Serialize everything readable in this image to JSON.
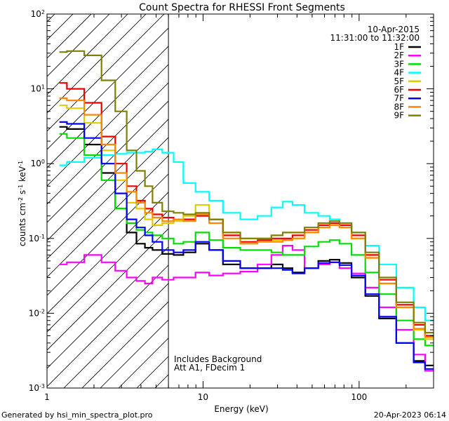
{
  "chart_data": {
    "type": "line",
    "title": "Count Spectra for RHESSI Front Segments",
    "xlabel": "Energy (keV)",
    "ylabel_parts": {
      "a": "counts cm",
      "b": "-2",
      "c": " s",
      "d": "-1",
      "e": " keV",
      "f": "-1"
    },
    "xscale": "log",
    "yscale": "log",
    "xlim": [
      1,
      300
    ],
    "ylim": [
      0.001,
      100
    ],
    "x_tick_labels": [
      "1",
      "10",
      "100"
    ],
    "y_tick_labels": [
      {
        "base": "10",
        "exp": "-3"
      },
      {
        "base": "10",
        "exp": "-2"
      },
      {
        "base": "10",
        "exp": "-1"
      },
      {
        "base": "10",
        "exp": "0"
      },
      {
        "base": "10",
        "exp": "1"
      },
      {
        "base": "10",
        "exp": "2"
      }
    ],
    "date": "10-Apr-2015",
    "time_range": "11:31:00 to 11:32:00",
    "note_line1": "Includes Background",
    "note_line2": "Att A1, FDecim 1",
    "hatched_region_keV": [
      1,
      6
    ],
    "x": [
      1.2,
      1.5,
      2,
      2.5,
      3,
      3.5,
      4,
      4.5,
      5,
      6,
      7,
      8,
      10,
      12,
      15,
      20,
      25,
      30,
      35,
      40,
      50,
      60,
      70,
      80,
      100,
      120,
      150,
      200,
      250,
      280
    ],
    "series": [
      {
        "name": "1F",
        "color": "#000000",
        "values": [
          3.1,
          2.9,
          1.8,
          0.75,
          0.25,
          0.12,
          0.085,
          0.075,
          0.07,
          0.062,
          0.06,
          0.065,
          0.085,
          0.07,
          0.045,
          0.04,
          0.04,
          0.045,
          0.04,
          0.035,
          0.04,
          0.05,
          0.052,
          0.047,
          0.03,
          0.017,
          0.0085,
          0.004,
          0.0023,
          0.002
        ]
      },
      {
        "name": "2F",
        "color": "#ff00ff",
        "values": [
          0.045,
          0.048,
          0.06,
          0.048,
          0.037,
          0.03,
          0.027,
          0.025,
          0.03,
          0.028,
          0.03,
          0.03,
          0.035,
          0.032,
          0.034,
          0.036,
          0.045,
          0.06,
          0.08,
          0.07,
          0.04,
          0.045,
          0.048,
          0.04,
          0.034,
          0.022,
          0.012,
          0.006,
          0.0028,
          0.0017
        ]
      },
      {
        "name": "3F",
        "color": "#00dd00",
        "values": [
          2.5,
          2.2,
          1.3,
          0.6,
          0.25,
          0.16,
          0.13,
          0.12,
          0.11,
          0.1,
          0.085,
          0.09,
          0.12,
          0.095,
          0.075,
          0.07,
          0.07,
          0.065,
          0.06,
          0.06,
          0.078,
          0.09,
          0.095,
          0.085,
          0.06,
          0.035,
          0.018,
          0.008,
          0.0045,
          0.0037
        ]
      },
      {
        "name": "4F",
        "color": "#00ffff",
        "values": [
          0.95,
          1.05,
          1.2,
          1.3,
          1.35,
          1.4,
          1.4,
          1.45,
          1.55,
          1.4,
          1.05,
          0.55,
          0.42,
          0.32,
          0.22,
          0.18,
          0.2,
          0.26,
          0.31,
          0.28,
          0.22,
          0.2,
          0.18,
          0.16,
          0.12,
          0.08,
          0.045,
          0.022,
          0.012,
          0.008
        ]
      },
      {
        "name": "5F",
        "color": "#ddcc00",
        "values": [
          6.0,
          5.5,
          3.5,
          1.5,
          0.6,
          0.3,
          0.25,
          0.18,
          0.15,
          0.16,
          0.17,
          0.2,
          0.28,
          0.18,
          0.12,
          0.1,
          0.1,
          0.095,
          0.095,
          0.1,
          0.12,
          0.14,
          0.15,
          0.14,
          0.1,
          0.055,
          0.025,
          0.012,
          0.006,
          0.0045
        ]
      },
      {
        "name": "6F",
        "color": "#ee0000",
        "values": [
          12,
          10,
          6.5,
          2.3,
          1.0,
          0.5,
          0.32,
          0.25,
          0.21,
          0.19,
          0.18,
          0.18,
          0.2,
          0.18,
          0.11,
          0.09,
          0.095,
          0.1,
          0.1,
          0.11,
          0.13,
          0.15,
          0.16,
          0.15,
          0.11,
          0.06,
          0.028,
          0.013,
          0.007,
          0.005
        ]
      },
      {
        "name": "7F",
        "color": "#0000ff",
        "values": [
          3.6,
          3.4,
          2.2,
          1.0,
          0.4,
          0.18,
          0.14,
          0.11,
          0.09,
          0.07,
          0.065,
          0.07,
          0.09,
          0.07,
          0.05,
          0.04,
          0.04,
          0.04,
          0.038,
          0.034,
          0.04,
          0.047,
          0.048,
          0.044,
          0.032,
          0.018,
          0.009,
          0.004,
          0.0022,
          0.0018
        ]
      },
      {
        "name": "8F",
        "color": "#ff8800",
        "values": [
          7.5,
          7.0,
          4.5,
          1.8,
          0.75,
          0.42,
          0.3,
          0.22,
          0.19,
          0.17,
          0.18,
          0.17,
          0.21,
          0.16,
          0.1,
          0.085,
          0.09,
          0.09,
          0.095,
          0.1,
          0.12,
          0.14,
          0.15,
          0.14,
          0.1,
          0.055,
          0.025,
          0.012,
          0.0062,
          0.0048
        ]
      },
      {
        "name": "9F",
        "color": "#808000",
        "values": [
          31,
          32,
          28,
          13,
          5.0,
          1.5,
          0.8,
          0.5,
          0.3,
          0.23,
          0.22,
          0.21,
          0.22,
          0.18,
          0.12,
          0.1,
          0.1,
          0.11,
          0.12,
          0.12,
          0.14,
          0.16,
          0.17,
          0.16,
          0.12,
          0.065,
          0.03,
          0.014,
          0.0075,
          0.0055
        ]
      }
    ]
  },
  "footer": {
    "left": "Generated by hsi_min_spectra_plot.pro",
    "right": "20-Apr-2023 06:14"
  }
}
